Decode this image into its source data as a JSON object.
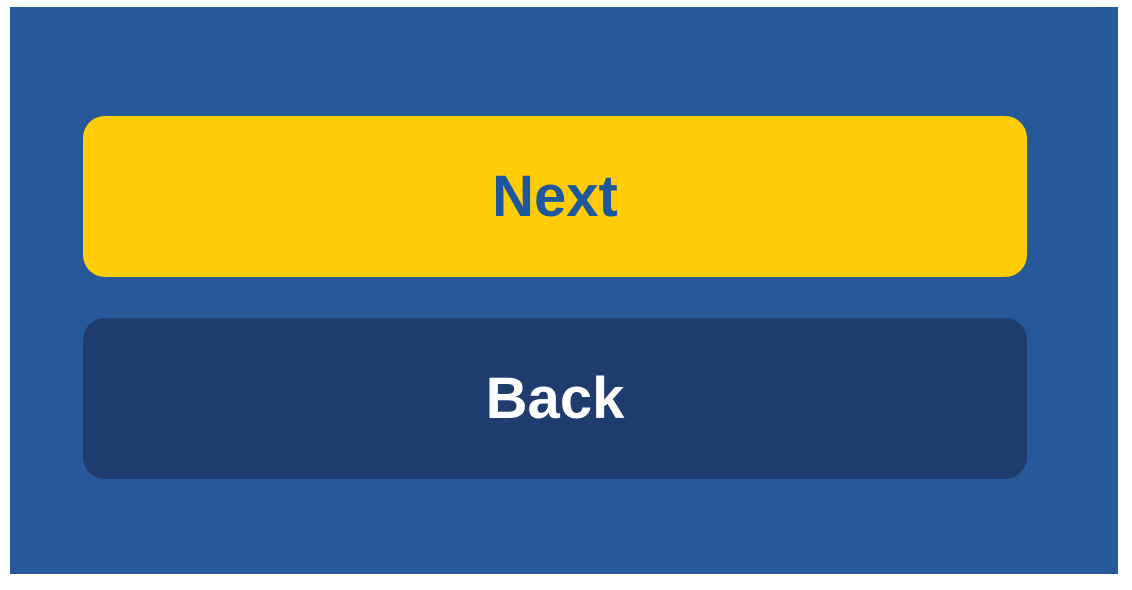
{
  "buttons": {
    "next_label": "Next",
    "back_label": "Back"
  },
  "colors": {
    "background": "#26589a",
    "next_bg": "#ffcc0a",
    "next_text": "#1d579c",
    "back_bg": "#1e3c6e",
    "back_text": "#ffffff"
  }
}
